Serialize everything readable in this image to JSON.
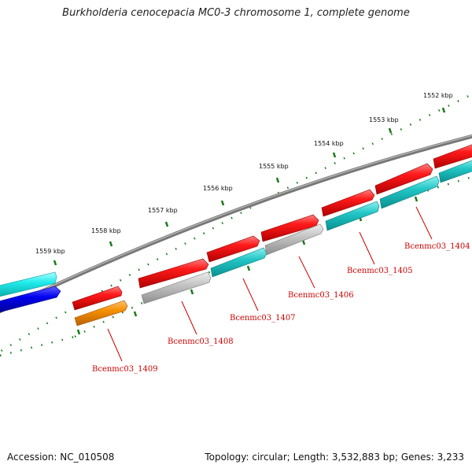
{
  "title": "Burkholderia cenocepacia MC0-3 chromosome 1, complete genome",
  "footer": {
    "accession": "Accession: NC_010508",
    "summary": "Topology: circular; Length: 3,532,883 bp; Genes: 3,233"
  },
  "scale_labels": [
    "1552 kbp",
    "1553 kbp",
    "1554 kbp",
    "1555 kbp",
    "1556 kbp",
    "1557 kbp",
    "1558 kbp",
    "1559 kbp"
  ],
  "gene_labels": [
    "Bcenmc03_1404",
    "Bcenmc03_1405",
    "Bcenmc03_1406",
    "Bcenmc03_1407",
    "Bcenmc03_1408",
    "Bcenmc03_1409"
  ],
  "colors": {
    "cds_red": "#e60000",
    "cds_teal": "#19c3c3",
    "cds_gray": "#b9b9b9",
    "cds_orange": "#f08a00",
    "cds_cyan": "#19e6e6",
    "cds_blue": "#0000e0",
    "backbone": "#888888",
    "ticks": "#1a7a1a",
    "label_red": "#cc0000"
  }
}
